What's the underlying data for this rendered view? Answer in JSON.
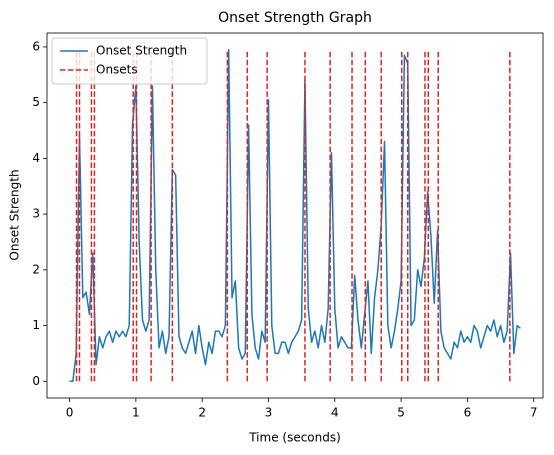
{
  "chart_data": {
    "type": "line",
    "title": "Onset Strength Graph",
    "xlabel": "Time (seconds)",
    "ylabel": "Onset Strength",
    "xlim": [
      -0.34,
      7.14
    ],
    "ylim": [
      -0.3,
      6.25
    ],
    "xticks": [
      0,
      1,
      2,
      3,
      4,
      5,
      6,
      7
    ],
    "yticks": [
      0,
      1,
      2,
      3,
      4,
      5,
      6
    ],
    "legend": "upper left",
    "series": [
      {
        "name": "Onset Strength",
        "color": "#1f77b4",
        "x": [
          0,
          0.05,
          0.1,
          0.15,
          0.2,
          0.25,
          0.3,
          0.35,
          0.4,
          0.45,
          0.5,
          0.55,
          0.6,
          0.65,
          0.7,
          0.75,
          0.8,
          0.85,
          0.9,
          0.95,
          1,
          1.05,
          1.1,
          1.15,
          1.2,
          1.25,
          1.3,
          1.35,
          1.4,
          1.45,
          1.5,
          1.55,
          1.6,
          1.65,
          1.7,
          1.75,
          1.8,
          1.85,
          1.9,
          1.95,
          2,
          2.05,
          2.1,
          2.15,
          2.2,
          2.25,
          2.3,
          2.35,
          2.4,
          2.45,
          2.5,
          2.55,
          2.6,
          2.65,
          2.7,
          2.75,
          2.8,
          2.85,
          2.9,
          2.95,
          3,
          3.05,
          3.1,
          3.15,
          3.2,
          3.25,
          3.3,
          3.35,
          3.4,
          3.45,
          3.5,
          3.55,
          3.6,
          3.65,
          3.7,
          3.75,
          3.8,
          3.85,
          3.9,
          3.95,
          4,
          4.05,
          4.1,
          4.15,
          4.2,
          4.25,
          4.3,
          4.35,
          4.4,
          4.45,
          4.5,
          4.55,
          4.6,
          4.65,
          4.7,
          4.75,
          4.8,
          4.85,
          4.9,
          4.95,
          5,
          5.05,
          5.1,
          5.15,
          5.2,
          5.25,
          5.3,
          5.35,
          5.4,
          5.45,
          5.5,
          5.55,
          5.6,
          5.65,
          5.7,
          5.75,
          5.8,
          5.85,
          5.9,
          5.95,
          6,
          6.05,
          6.1,
          6.15,
          6.2,
          6.25,
          6.3,
          6.35,
          6.4,
          6.45,
          6.5,
          6.55,
          6.6,
          6.65,
          6.7,
          6.75,
          6.8
        ],
        "values": [
          0,
          0,
          0.5,
          4.4,
          1.5,
          1.6,
          1.2,
          2.3,
          0.3,
          0.8,
          0.6,
          0.8,
          0.9,
          0.7,
          0.9,
          0.8,
          0.9,
          0.8,
          1.0,
          4.6,
          5.3,
          2.5,
          1.1,
          0.9,
          1.1,
          5.3,
          2.0,
          0.6,
          0.9,
          0.5,
          0.8,
          3.8,
          3.7,
          0.8,
          0.6,
          0.5,
          0.7,
          0.9,
          0.5,
          1.0,
          0.6,
          0.3,
          0.7,
          0.5,
          0.9,
          0.9,
          0.8,
          1.0,
          5.95,
          1.5,
          1.8,
          0.6,
          0.4,
          0.5,
          4.6,
          1.2,
          0.6,
          0.4,
          0.9,
          0.7,
          5.05,
          1.0,
          0.5,
          0.5,
          0.7,
          0.7,
          0.5,
          0.7,
          0.8,
          0.9,
          1.1,
          5.4,
          1.3,
          0.7,
          0.9,
          0.6,
          1.0,
          0.7,
          1.3,
          4.1,
          1.3,
          0.6,
          0.8,
          0.7,
          0.6,
          0.6,
          1.9,
          1.1,
          0.6,
          1.2,
          1.8,
          0.5,
          1.5,
          2.0,
          2.8,
          4.3,
          1.0,
          0.6,
          0.9,
          1.3,
          1.8,
          5.85,
          5.7,
          1.0,
          1.1,
          2.0,
          1.7,
          2.2,
          3.4,
          2.6,
          1.4,
          2.7,
          0.9,
          0.6,
          0.5,
          0.4,
          0.7,
          0.6,
          0.9,
          0.7,
          0.8,
          0.7,
          1.0,
          0.9,
          0.6,
          0.8,
          1.0,
          0.9,
          1.1,
          0.8,
          1.0,
          0.7,
          0.9,
          2.3,
          0.5,
          1.0,
          0.95
        ]
      }
    ],
    "onsets": {
      "name": "Onsets",
      "color": "#d62728",
      "x": [
        0.105,
        0.15,
        0.33,
        0.375,
        0.96,
        1.01,
        1.23,
        1.55,
        2.38,
        2.68,
        2.98,
        3.55,
        3.93,
        4.26,
        4.46,
        4.7,
        5.01,
        5.1,
        5.36,
        5.41,
        5.56,
        6.64
      ],
      "ymin": 0,
      "ymax": 5.95
    }
  }
}
